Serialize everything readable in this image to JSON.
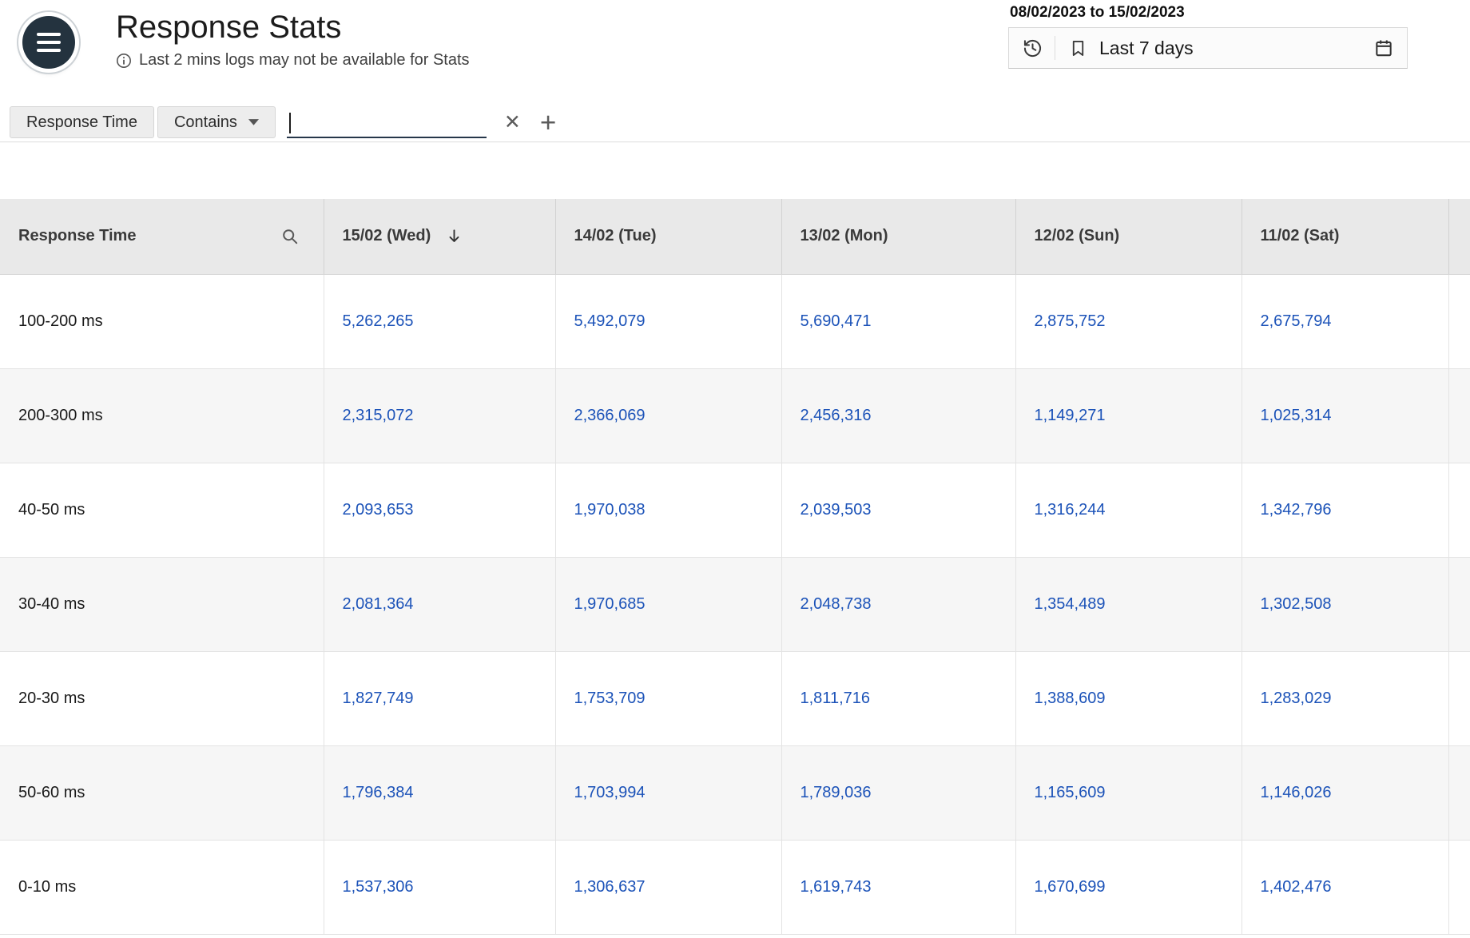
{
  "header": {
    "title": "Response Stats",
    "subtitle": "Last 2 mins logs may not be available for Stats",
    "date_range": "08/02/2023 to 15/02/2023",
    "period_label": "Last 7 days"
  },
  "filter": {
    "field_label": "Response Time",
    "operator_label": "Contains",
    "value": "",
    "clear_icon": "✕",
    "add_icon": "+"
  },
  "table": {
    "columns": [
      "Response Time",
      "15/02 (Wed)",
      "14/02 (Tue)",
      "13/02 (Mon)",
      "12/02 (Sun)",
      "11/02 (Sat)"
    ],
    "sorted_column": "15/02 (Wed)",
    "sort_direction": "desc",
    "rows": [
      {
        "label": "100-200 ms",
        "values": [
          "5,262,265",
          "5,492,079",
          "5,690,471",
          "2,875,752",
          "2,675,794"
        ]
      },
      {
        "label": "200-300 ms",
        "values": [
          "2,315,072",
          "2,366,069",
          "2,456,316",
          "1,149,271",
          "1,025,314"
        ]
      },
      {
        "label": "40-50 ms",
        "values": [
          "2,093,653",
          "1,970,038",
          "2,039,503",
          "1,316,244",
          "1,342,796"
        ]
      },
      {
        "label": "30-40 ms",
        "values": [
          "2,081,364",
          "1,970,685",
          "2,048,738",
          "1,354,489",
          "1,302,508"
        ]
      },
      {
        "label": "20-30 ms",
        "values": [
          "1,827,749",
          "1,753,709",
          "1,811,716",
          "1,388,609",
          "1,283,029"
        ]
      },
      {
        "label": "50-60 ms",
        "values": [
          "1,796,384",
          "1,703,994",
          "1,789,036",
          "1,165,609",
          "1,146,026"
        ]
      },
      {
        "label": "0-10 ms",
        "values": [
          "1,537,306",
          "1,306,637",
          "1,619,743",
          "1,670,699",
          "1,402,476"
        ]
      }
    ]
  },
  "colors": {
    "value_link": "#1b52b8",
    "header_bg": "#e9e9e9",
    "accent_dark": "#24333f"
  }
}
